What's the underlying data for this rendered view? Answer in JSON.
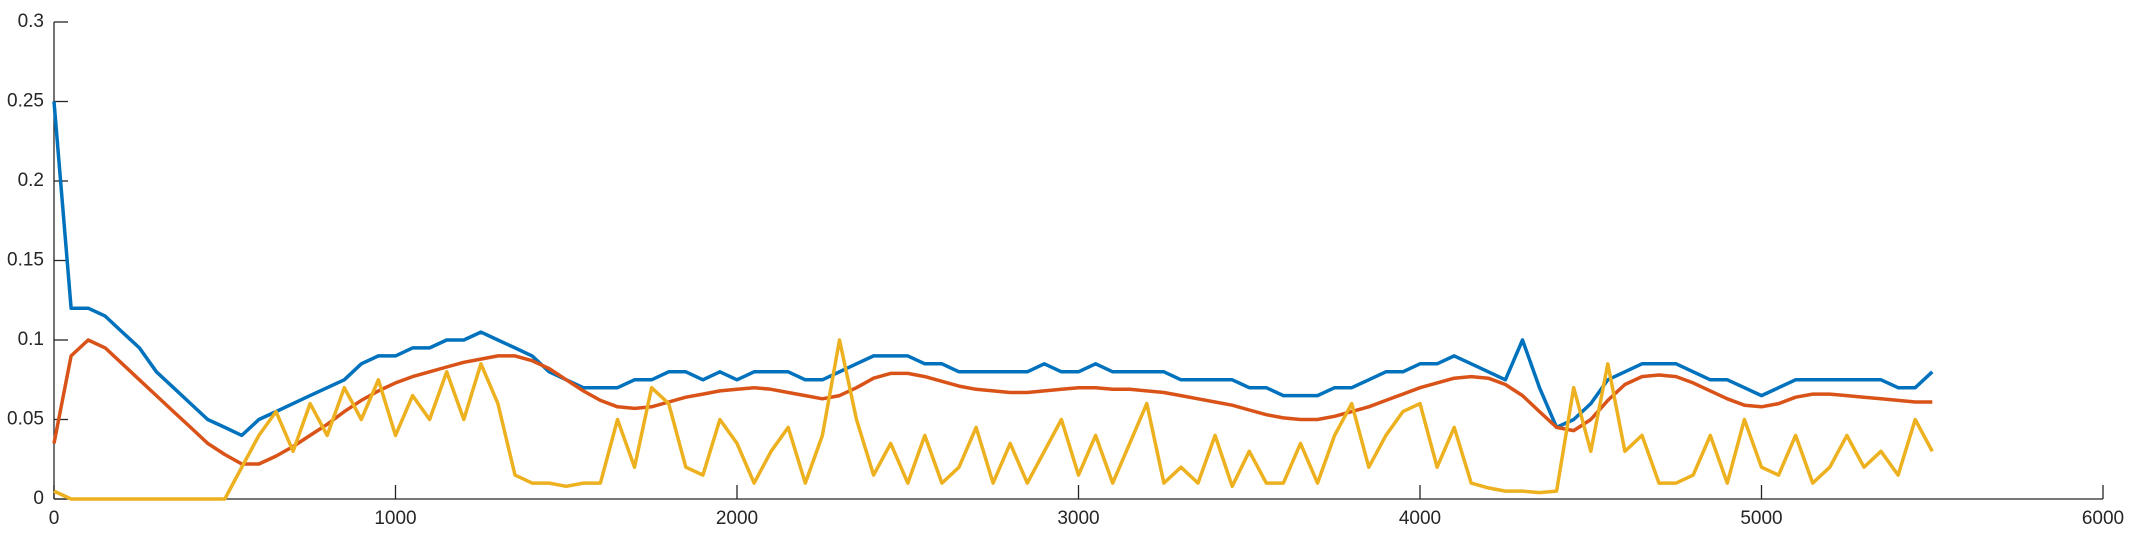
{
  "chart_data": {
    "type": "line",
    "x": [
      0,
      50,
      100,
      150,
      200,
      250,
      300,
      350,
      400,
      450,
      500,
      550,
      600,
      650,
      700,
      750,
      800,
      850,
      900,
      950,
      1000,
      1050,
      1100,
      1150,
      1200,
      1250,
      1300,
      1350,
      1400,
      1450,
      1500,
      1550,
      1600,
      1650,
      1700,
      1750,
      1800,
      1850,
      1900,
      1950,
      2000,
      2050,
      2100,
      2150,
      2200,
      2250,
      2300,
      2350,
      2400,
      2450,
      2500,
      2550,
      2600,
      2650,
      2700,
      2750,
      2800,
      2850,
      2900,
      2950,
      3000,
      3050,
      3100,
      3150,
      3200,
      3250,
      3300,
      3350,
      3400,
      3450,
      3500,
      3550,
      3600,
      3650,
      3700,
      3750,
      3800,
      3850,
      3900,
      3950,
      4000,
      4050,
      4100,
      4150,
      4200,
      4250,
      4300,
      4350,
      4400,
      4450,
      4500,
      4550,
      4600,
      4650,
      4700,
      4750,
      4800,
      4850,
      4900,
      4950,
      5000,
      5050,
      5100,
      5150,
      5200,
      5250,
      5300,
      5350,
      5400,
      5450,
      5500
    ],
    "series": [
      {
        "color": "#0072BD",
        "values": [
          0.25,
          0.12,
          0.12,
          0.115,
          0.105,
          0.095,
          0.08,
          0.07,
          0.06,
          0.05,
          0.045,
          0.04,
          0.05,
          0.055,
          0.06,
          0.065,
          0.07,
          0.075,
          0.085,
          0.09,
          0.09,
          0.095,
          0.095,
          0.1,
          0.1,
          0.105,
          0.1,
          0.095,
          0.09,
          0.08,
          0.075,
          0.07,
          0.07,
          0.07,
          0.075,
          0.075,
          0.08,
          0.08,
          0.075,
          0.08,
          0.075,
          0.08,
          0.08,
          0.08,
          0.075,
          0.075,
          0.08,
          0.085,
          0.09,
          0.09,
          0.09,
          0.085,
          0.085,
          0.08,
          0.08,
          0.08,
          0.08,
          0.08,
          0.085,
          0.08,
          0.08,
          0.085,
          0.08,
          0.08,
          0.08,
          0.08,
          0.075,
          0.075,
          0.075,
          0.075,
          0.07,
          0.07,
          0.065,
          0.065,
          0.065,
          0.07,
          0.07,
          0.075,
          0.08,
          0.08,
          0.085,
          0.085,
          0.09,
          0.085,
          0.08,
          0.075,
          0.1,
          0.07,
          0.045,
          0.05,
          0.06,
          0.075,
          0.08,
          0.085,
          0.085,
          0.085,
          0.08,
          0.075,
          0.075,
          0.07,
          0.065,
          0.07,
          0.075,
          0.075,
          0.075,
          0.075,
          0.075,
          0.075,
          0.07,
          0.07,
          0.08
        ]
      },
      {
        "color": "#D95319",
        "values": [
          0.035,
          0.09,
          0.1,
          0.095,
          0.085,
          0.075,
          0.065,
          0.055,
          0.045,
          0.035,
          0.028,
          0.022,
          0.022,
          0.027,
          0.033,
          0.04,
          0.047,
          0.055,
          0.062,
          0.068,
          0.073,
          0.077,
          0.08,
          0.083,
          0.086,
          0.088,
          0.09,
          0.09,
          0.087,
          0.082,
          0.075,
          0.068,
          0.062,
          0.058,
          0.057,
          0.058,
          0.061,
          0.064,
          0.066,
          0.068,
          0.069,
          0.07,
          0.069,
          0.067,
          0.065,
          0.063,
          0.065,
          0.07,
          0.076,
          0.079,
          0.079,
          0.077,
          0.074,
          0.071,
          0.069,
          0.068,
          0.067,
          0.067,
          0.068,
          0.069,
          0.07,
          0.07,
          0.069,
          0.069,
          0.068,
          0.067,
          0.065,
          0.063,
          0.061,
          0.059,
          0.056,
          0.053,
          0.051,
          0.05,
          0.05,
          0.052,
          0.055,
          0.058,
          0.062,
          0.066,
          0.07,
          0.073,
          0.076,
          0.077,
          0.076,
          0.072,
          0.065,
          0.055,
          0.045,
          0.043,
          0.05,
          0.062,
          0.072,
          0.077,
          0.078,
          0.077,
          0.073,
          0.068,
          0.063,
          0.059,
          0.058,
          0.06,
          0.064,
          0.066,
          0.066,
          0.065,
          0.064,
          0.063,
          0.062,
          0.061,
          0.061
        ]
      },
      {
        "color": "#EDB120",
        "values": [
          0.005,
          0,
          0,
          0,
          0,
          0,
          0,
          0,
          0,
          0,
          0,
          0.02,
          0.04,
          0.055,
          0.03,
          0.06,
          0.04,
          0.07,
          0.05,
          0.075,
          0.04,
          0.065,
          0.05,
          0.08,
          0.05,
          0.085,
          0.06,
          0.015,
          0.01,
          0.01,
          0.008,
          0.01,
          0.01,
          0.05,
          0.02,
          0.07,
          0.06,
          0.02,
          0.015,
          0.05,
          0.035,
          0.01,
          0.03,
          0.045,
          0.01,
          0.04,
          0.1,
          0.05,
          0.015,
          0.035,
          0.01,
          0.04,
          0.01,
          0.02,
          0.045,
          0.01,
          0.035,
          0.01,
          0.03,
          0.05,
          0.015,
          0.04,
          0.01,
          0.035,
          0.06,
          0.01,
          0.02,
          0.01,
          0.04,
          0.008,
          0.03,
          0.01,
          0.01,
          0.035,
          0.01,
          0.04,
          0.06,
          0.02,
          0.04,
          0.055,
          0.06,
          0.02,
          0.045,
          0.01,
          0.007,
          0.005,
          0.005,
          0.004,
          0.005,
          0.07,
          0.03,
          0.085,
          0.03,
          0.04,
          0.01,
          0.01,
          0.015,
          0.04,
          0.01,
          0.05,
          0.02,
          0.015,
          0.04,
          0.01,
          0.02,
          0.04,
          0.02,
          0.03,
          0.015,
          0.05,
          0.03
        ]
      }
    ],
    "xlim": [
      0,
      6000
    ],
    "xticks": [
      0,
      1000,
      2000,
      3000,
      4000,
      5000,
      6000
    ],
    "ylim": [
      0,
      0.3
    ],
    "yticks": [
      0,
      0.05,
      0.1,
      0.15,
      0.2,
      0.25,
      0.3
    ]
  }
}
